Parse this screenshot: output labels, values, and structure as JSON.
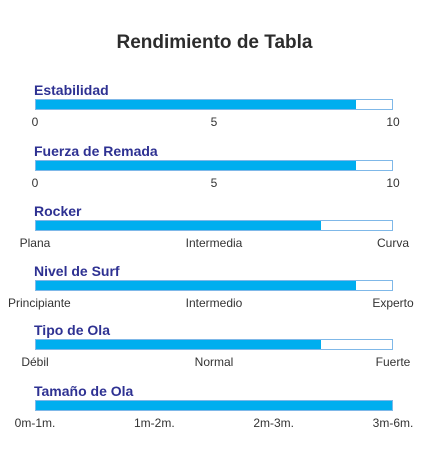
{
  "title": "Rendimiento de Tabla",
  "colors": {
    "fill": "#00aeef",
    "track_border": "#7fb8e8",
    "label": "#2e3192"
  },
  "chart_data": [
    {
      "type": "bar",
      "label": "Estabilidad",
      "value": 9,
      "xlim": [
        0,
        10
      ],
      "ticks": [
        "0",
        "5",
        "10"
      ]
    },
    {
      "type": "bar",
      "label": "Fuerza de Remada",
      "value": 9,
      "xlim": [
        0,
        10
      ],
      "ticks": [
        "0",
        "5",
        "10"
      ]
    },
    {
      "type": "bar",
      "label": "Rocker",
      "value": 0.8,
      "xlim": [
        0,
        1
      ],
      "ticks": [
        "Plana",
        "Intermedia",
        "Curva"
      ]
    },
    {
      "type": "bar",
      "label": "Nivel de Surf",
      "value": 0.9,
      "xlim": [
        0,
        1
      ],
      "ticks": [
        "Principiante",
        "Intermedio",
        "Experto"
      ]
    },
    {
      "type": "bar",
      "label": "Tipo de Ola",
      "value": 0.8,
      "xlim": [
        0,
        1
      ],
      "ticks": [
        "Débil",
        "Normal",
        "Fuerte"
      ]
    },
    {
      "type": "bar",
      "label": "Tamaño de Ola",
      "value": 1.0,
      "xlim": [
        0,
        1
      ],
      "ticks": [
        "0m-1m.",
        "1m-2m.",
        "2m-3m.",
        "3m-6m."
      ]
    }
  ]
}
